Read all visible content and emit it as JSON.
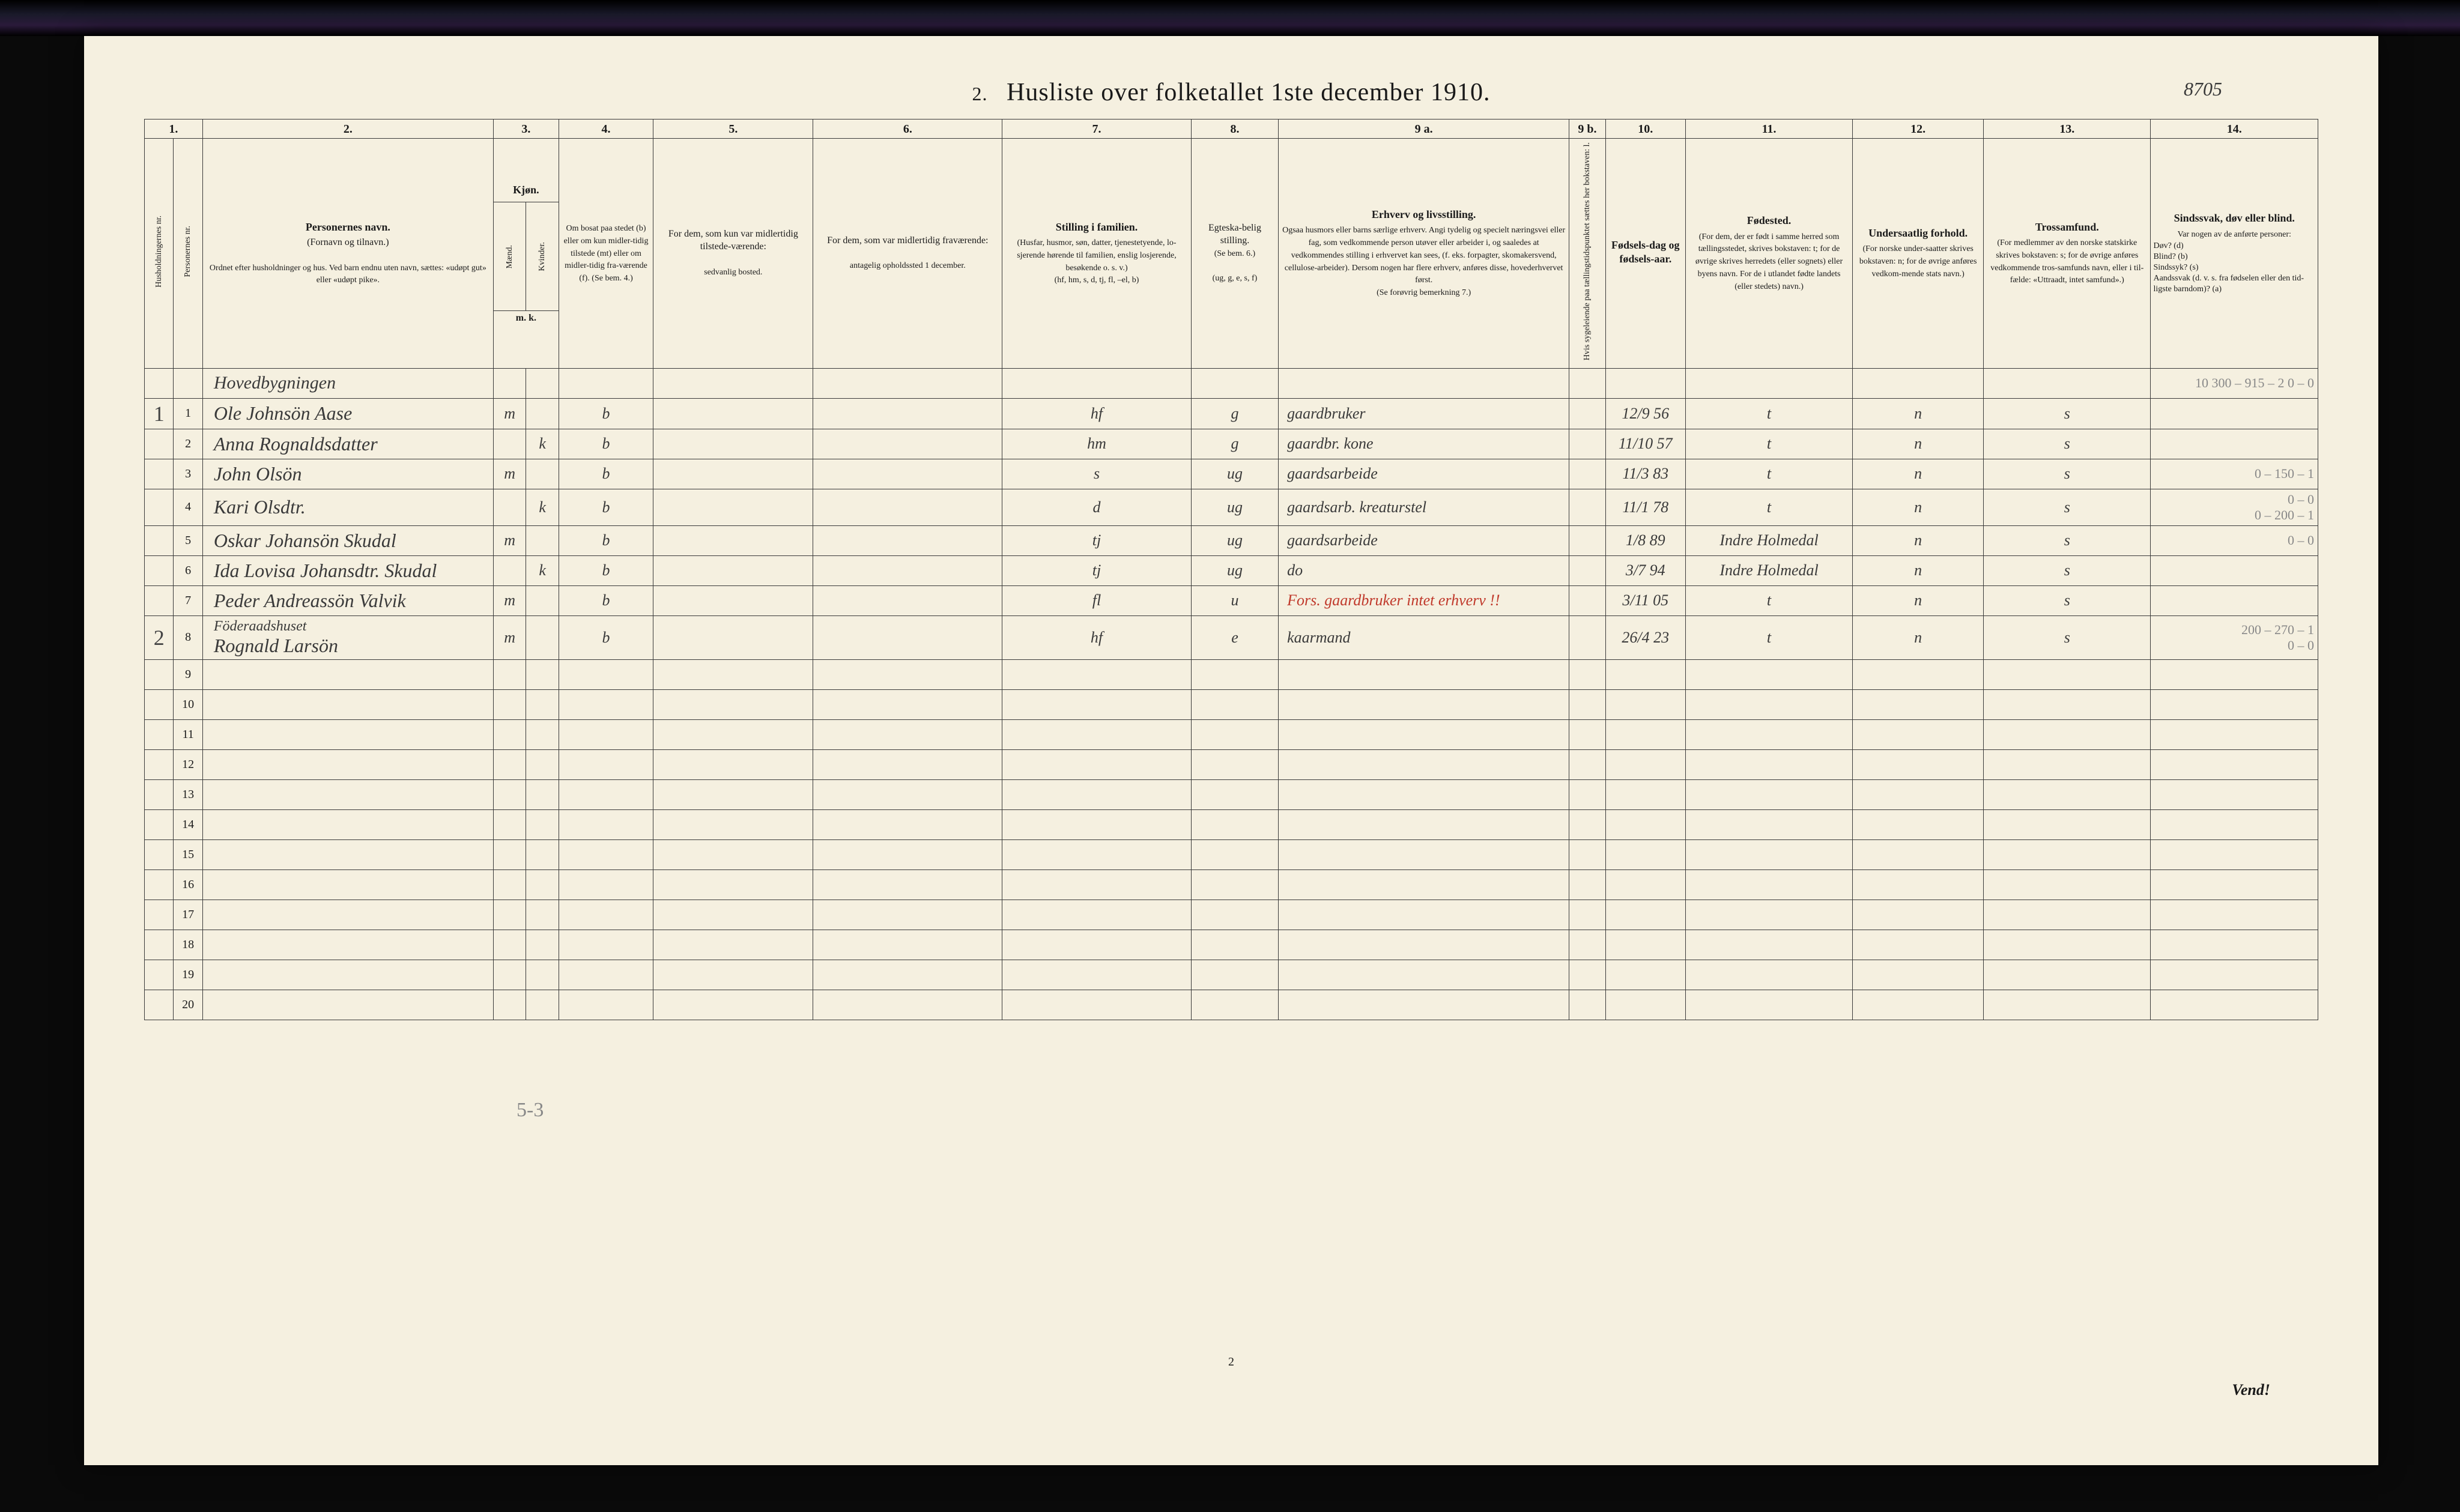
{
  "title_prefix": "2.",
  "title": "Husliste over folketallet 1ste december 1910.",
  "annotation_top_right": "8705",
  "page_number_bottom": "2",
  "vend_label": "Vend!",
  "below_table_note": "5-3",
  "column_numbers": [
    "1.",
    "2.",
    "3.",
    "4.",
    "5.",
    "6.",
    "7.",
    "8.",
    "9 a.",
    "9 b.",
    "10.",
    "11.",
    "12.",
    "13.",
    "14."
  ],
  "headers": {
    "col1a": "Husholdningernes nr.",
    "col1b": "Personernes nr.",
    "col2_title": "Personernes navn.",
    "col2_sub": "(Fornavn og tilnavn.)",
    "col2_note": "Ordnet efter husholdninger og hus. Ved barn endnu uten navn, sættes: «udøpt gut» eller «udøpt pike».",
    "col3_title": "Kjøn.",
    "col3_m": "Mænd.",
    "col3_k": "Kvinder.",
    "col3_mk": "m.   k.",
    "col4": "Om bosat paa stedet (b) eller om kun midler-tidig tilstede (mt) eller om midler-tidig fra-værende (f). (Se bem. 4.)",
    "col5_title": "For dem, som kun var midlertidig tilstede-værende:",
    "col5_sub": "sedvanlig bosted.",
    "col6_title": "For dem, som var midlertidig fraværende:",
    "col6_sub": "antagelig opholdssted 1 december.",
    "col7_title": "Stilling i familien.",
    "col7_sub": "(Husfar, husmor, søn, datter, tjenestetyende, lo-sjerende hørende til familien, enslig losjerende, besøkende o. s. v.)",
    "col7_codes": "(hf, hm, s, d, tj, fl, –el, b)",
    "col8_title": "Egteska-belig stilling.",
    "col8_sub": "(Se bem. 6.)",
    "col8_codes": "(ug, g, e, s, f)",
    "col9a_title": "Erhverv og livsstilling.",
    "col9a_sub": "Ogsaa husmors eller barns særlige erhverv. Angi tydelig og specielt næringsvei eller fag, som vedkommende person utøver eller arbeider i, og saaledes at vedkommendes stilling i erhvervet kan sees, (f. eks. forpagter, skomakersvend, cellulose-arbeider). Dersom nogen har flere erhverv, anføres disse, hovederhvervet først.",
    "col9a_note": "(Se forøvrig bemerkning 7.)",
    "col9b": "Hvis sygeleiende paa tællingstidspunktet sættes her bokstaven: l.",
    "col10_title": "Fødsels-dag og fødsels-aar.",
    "col11_title": "Fødested.",
    "col11_sub": "(For dem, der er født i samme herred som tællingsstedet, skrives bokstaven: t; for de øvrige skrives herredets (eller sognets) eller byens navn. For de i utlandet fødte landets (eller stedets) navn.)",
    "col12_title": "Undersaatlig forhold.",
    "col12_sub": "(For norske under-saatter skrives bokstaven: n; for de øvrige anføres vedkom-mende stats navn.)",
    "col13_title": "Trossamfund.",
    "col13_sub": "(For medlemmer av den norske statskirke skrives bokstaven: s; for de øvrige anføres vedkommende tros-samfunds navn, eller i til-fælde: «Uttraadt, intet samfund».)",
    "col14_title": "Sindssvak, døv eller blind.",
    "col14_sub": "Var nogen av de anførte personer:",
    "col14_lines": "Døv?        (d)\nBlind?       (b)\nSindssyk? (s)\nAandssvak (d. v. s. fra fødselen eller den tid-ligste barndom)? (a)"
  },
  "building_header": "Hovedbygningen",
  "rows": [
    {
      "house": "1",
      "pn": "1",
      "name": "Ole Johnsön Aase",
      "m": "m",
      "k": "",
      "bosat": "b",
      "c5": "",
      "c6": "",
      "c7": "hf",
      "c8": "g",
      "c9a": "gaardbruker",
      "c9b": "",
      "c10": "12/9 56",
      "c11": "t",
      "c12": "n",
      "c13": "s",
      "c14": "10 300 – 915 – 2\n0 – 0"
    },
    {
      "house": "",
      "pn": "2",
      "name": "Anna Rognaldsdatter",
      "m": "",
      "k": "k",
      "bosat": "b",
      "c5": "",
      "c6": "",
      "c7": "hm",
      "c8": "g",
      "c9a": "gaardbr. kone",
      "c9b": "",
      "c10": "11/10 57",
      "c11": "t",
      "c12": "n",
      "c13": "s",
      "c14": ""
    },
    {
      "house": "",
      "pn": "3",
      "name": "John Olsön",
      "m": "m",
      "k": "",
      "bosat": "b",
      "c5": "",
      "c6": "",
      "c7": "s",
      "c8": "ug",
      "c9a": "gaardsarbeide",
      "c9b": "",
      "c10": "11/3 83",
      "c11": "t",
      "c12": "n",
      "c13": "s",
      "c14": "0 – 150 – 1"
    },
    {
      "house": "",
      "pn": "4",
      "name": "Kari Olsdtr.",
      "m": "",
      "k": "k",
      "bosat": "b",
      "c5": "",
      "c6": "",
      "c7": "d",
      "c8": "ug",
      "c9a": "gaardsarb. kreaturstel",
      "c9b": "",
      "c10": "11/1 78",
      "c11": "t",
      "c12": "n",
      "c13": "s",
      "c14": "0 – 0\n0 – 200 – 1"
    },
    {
      "house": "",
      "pn": "5",
      "name": "Oskar Johansön Skudal",
      "m": "m",
      "k": "",
      "bosat": "b",
      "c5": "",
      "c6": "",
      "c7": "tj",
      "c8": "ug",
      "c9a": "gaardsarbeide",
      "c9b": "",
      "c10": "1/8 89",
      "c11": "Indre Holmedal",
      "c12": "n",
      "c13": "s",
      "c14": "0 – 0"
    },
    {
      "house": "",
      "pn": "6",
      "name": "Ida Lovisa Johansdtr. Skudal",
      "m": "",
      "k": "k",
      "bosat": "b",
      "c5": "",
      "c6": "",
      "c7": "tj",
      "c8": "ug",
      "c9a": "do",
      "c9b": "",
      "c10": "3/7 94",
      "c11": "Indre Holmedal",
      "c12": "n",
      "c13": "s",
      "c14": ""
    },
    {
      "house": "",
      "pn": "7",
      "name": "Peder Andreassön Valvik",
      "m": "m",
      "k": "",
      "bosat": "b",
      "c5": "",
      "c6": "",
      "c7": "fl",
      "c8": "u",
      "c9a": "Fors. gaardbruker intet erhverv !!",
      "c9a_red": true,
      "c9b": "",
      "c10": "3/11 05",
      "c11": "t",
      "c12": "n",
      "c13": "s",
      "c14": ""
    },
    {
      "house": "2",
      "pn": "8",
      "name": "Föderaadshuset\nRognald Larsön",
      "m": "m",
      "k": "",
      "bosat": "b",
      "c5": "",
      "c6": "",
      "c7": "hf",
      "c8": "e",
      "c9a": "kaarmand",
      "c9b": "",
      "c10": "26/4 23",
      "c11": "t",
      "c12": "n",
      "c13": "s",
      "c14": "200 – 270 – 1\n0 – 0"
    }
  ],
  "blank_row_numbers": [
    "9",
    "10",
    "11",
    "12",
    "13",
    "14",
    "15",
    "16",
    "17",
    "18",
    "19",
    "20"
  ]
}
